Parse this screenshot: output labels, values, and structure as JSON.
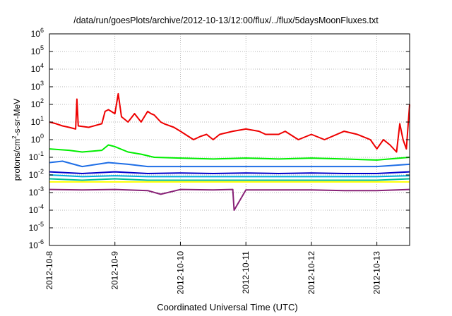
{
  "chart_data": {
    "type": "line",
    "title": "/data/run/goesPlots/archive/2012-10-13/12:00/flux/../flux/5daysMoonFluxes.txt",
    "xlabel": "Coordinated Universal Time (UTC)",
    "ylabel": "protons/cm2-s-sr-MeV",
    "ylabel_main": "protons/cm",
    "ylabel_sup": "2",
    "ylabel_rest": "-s-sr-MeV",
    "xlim": [
      "2012-10-08 00:00",
      "2012-10-13 12:00"
    ],
    "x_ticks": [
      "2012-10-8",
      "2012-10-9",
      "2012-10-10",
      "2012-10-11",
      "2012-10-12",
      "2012-10-13"
    ],
    "y_scale": "log",
    "ylim": [
      1e-06,
      1000000.0
    ],
    "y_ticks": [
      "10-6",
      "10-5",
      "10-4",
      "10-3",
      "10-2",
      "10-1",
      "100",
      "101",
      "102",
      "103",
      "104",
      "105",
      "106"
    ],
    "grid": true,
    "legend": "none",
    "series": [
      {
        "color": "#ee0000",
        "x": [
          0.0,
          0.1,
          0.2,
          0.3,
          0.4,
          0.42,
          0.44,
          0.6,
          0.8,
          0.85,
          0.9,
          1.0,
          1.05,
          1.1,
          1.2,
          1.3,
          1.4,
          1.5,
          1.55,
          1.6,
          1.7,
          1.75,
          1.9,
          2.0,
          2.2,
          2.3,
          2.4,
          2.5,
          2.6,
          2.8,
          3.0,
          3.2,
          3.3,
          3.5,
          3.6,
          3.8,
          4.0,
          4.2,
          4.5,
          4.7,
          4.9,
          5.0,
          5.1,
          5.2,
          5.3,
          5.35,
          5.4,
          5.45,
          5.5
        ],
        "y": [
          10,
          8,
          6,
          5,
          4,
          200,
          6,
          5,
          8,
          40,
          50,
          30,
          400,
          20,
          10,
          30,
          10,
          40,
          30,
          25,
          10,
          8,
          5,
          3,
          1,
          1.5,
          2,
          1,
          2,
          3,
          4,
          3,
          2,
          2,
          3,
          1,
          2,
          1,
          3,
          2,
          1,
          0.3,
          1,
          0.5,
          0.2,
          8,
          1,
          0.3,
          100
        ]
      },
      {
        "color": "#00ee00",
        "x": [
          0.0,
          0.3,
          0.5,
          0.8,
          0.9,
          1.0,
          1.2,
          1.4,
          1.6,
          2.0,
          2.5,
          3.0,
          3.5,
          4.0,
          4.5,
          5.0,
          5.5
        ],
        "y": [
          0.3,
          0.25,
          0.2,
          0.25,
          0.5,
          0.4,
          0.2,
          0.15,
          0.1,
          0.09,
          0.08,
          0.09,
          0.08,
          0.09,
          0.08,
          0.07,
          0.1
        ]
      },
      {
        "color": "#1e6ee6",
        "x": [
          0.0,
          0.2,
          0.5,
          0.9,
          1.2,
          1.5,
          2.0,
          2.5,
          3.0,
          3.5,
          4.0,
          4.5,
          5.0,
          5.5
        ],
        "y": [
          0.05,
          0.06,
          0.03,
          0.05,
          0.04,
          0.03,
          0.03,
          0.03,
          0.03,
          0.03,
          0.03,
          0.03,
          0.03,
          0.04
        ]
      },
      {
        "color": "#00aadd",
        "x": [
          0.0,
          0.5,
          1.0,
          1.5,
          2.0,
          2.5,
          3.0,
          3.5,
          4.0,
          4.5,
          5.0,
          5.5
        ],
        "y": [
          0.01,
          0.008,
          0.009,
          0.008,
          0.008,
          0.008,
          0.008,
          0.008,
          0.008,
          0.008,
          0.008,
          0.009
        ]
      },
      {
        "color": "#0000cc",
        "x": [
          0.0,
          0.5,
          1.0,
          1.5,
          2.0,
          2.5,
          3.0,
          3.5,
          4.0,
          4.5,
          5.0,
          5.5
        ],
        "y": [
          0.015,
          0.012,
          0.015,
          0.012,
          0.013,
          0.012,
          0.013,
          0.012,
          0.013,
          0.012,
          0.012,
          0.015
        ]
      },
      {
        "color": "#00bb99",
        "x": [
          0.0,
          0.5,
          1.0,
          1.5,
          2.0,
          2.5,
          3.0,
          3.5,
          4.0,
          4.5,
          5.0,
          5.5
        ],
        "y": [
          0.006,
          0.005,
          0.006,
          0.005,
          0.005,
          0.005,
          0.005,
          0.005,
          0.005,
          0.005,
          0.005,
          0.006
        ]
      },
      {
        "color": "#ffff00",
        "x": [
          0.0,
          0.5,
          1.0,
          1.5,
          2.0,
          2.5,
          3.0,
          3.5,
          4.0,
          4.5,
          5.0,
          5.5
        ],
        "y": [
          0.004,
          0.004,
          0.004,
          0.004,
          0.004,
          0.004,
          0.004,
          0.004,
          0.004,
          0.004,
          0.004,
          0.004
        ]
      },
      {
        "color": "#882277",
        "x": [
          0.0,
          0.5,
          1.0,
          1.5,
          1.7,
          2.0,
          2.5,
          2.8,
          2.82,
          3.0,
          3.5,
          4.0,
          4.5,
          5.0,
          5.5
        ],
        "y": [
          0.0015,
          0.0014,
          0.0015,
          0.0013,
          0.0008,
          0.0015,
          0.0014,
          0.0015,
          0.0001,
          0.0014,
          0.0014,
          0.0014,
          0.0013,
          0.0013,
          0.0015
        ]
      }
    ]
  }
}
